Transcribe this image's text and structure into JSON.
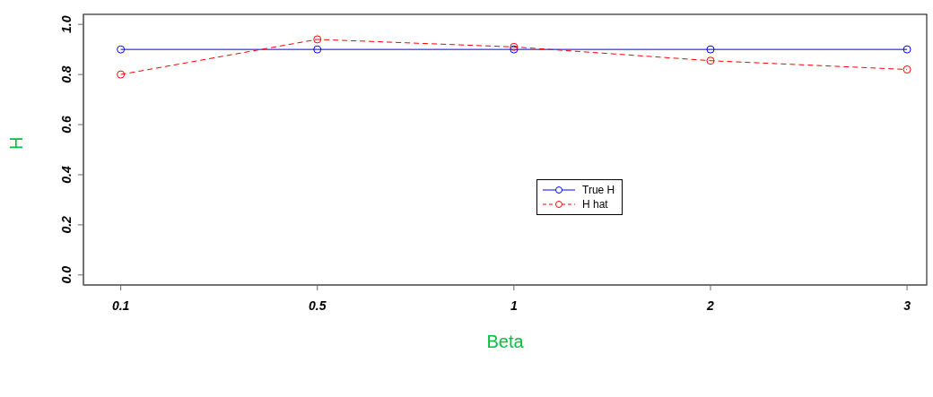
{
  "chart_data": {
    "type": "line",
    "xlabel": "Beta",
    "ylabel": "H",
    "categories": [
      "0.1",
      "0.5",
      "1",
      "2",
      "3"
    ],
    "series": [
      {
        "name": "True H",
        "color": "#0000ff",
        "values": [
          0.9,
          0.9,
          0.9,
          0.9,
          0.9
        ],
        "line_style": "solid"
      },
      {
        "name": "H hat",
        "color": "#ff0000",
        "values": [
          0.8,
          0.94,
          0.91,
          0.855,
          0.82
        ],
        "line_style": "dashed"
      }
    ],
    "ylim": [
      -0.04,
      1.04
    ],
    "yticks": [
      {
        "value": 0,
        "label": "0.0"
      },
      0.2,
      0.4,
      0.6,
      0.8,
      {
        "value": 1,
        "label": "1.0"
      }
    ],
    "marker": "circle",
    "grid": false,
    "legend": "center"
  }
}
